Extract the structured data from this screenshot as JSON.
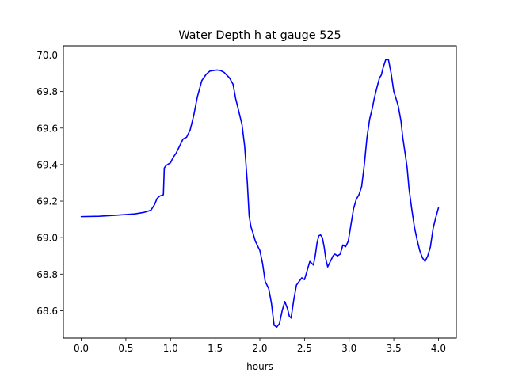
{
  "chart_data": {
    "type": "line",
    "title": "Water Depth h at gauge 525",
    "xlabel": "hours",
    "ylabel": "",
    "xlim": [
      -0.2,
      4.2
    ],
    "ylim": [
      68.45,
      70.05
    ],
    "xticks": [
      0.0,
      0.5,
      1.0,
      1.5,
      2.0,
      2.5,
      3.0,
      3.5,
      4.0
    ],
    "xtick_labels": [
      "0.0",
      "0.5",
      "1.0",
      "1.5",
      "2.0",
      "2.5",
      "3.0",
      "3.5",
      "4.0"
    ],
    "yticks": [
      68.6,
      68.8,
      69.0,
      69.2,
      69.4,
      69.6,
      69.8,
      70.0
    ],
    "ytick_labels": [
      "68.6",
      "68.8",
      "69.0",
      "69.2",
      "69.4",
      "69.6",
      "69.8",
      "70.0"
    ],
    "grid": false,
    "legend": "none",
    "series": [
      {
        "color": "#0000ff",
        "x": [
          0.0,
          0.2,
          0.4,
          0.6,
          0.7,
          0.78,
          0.82,
          0.85,
          0.88,
          0.92,
          0.93,
          0.935,
          0.95,
          1.0,
          1.03,
          1.06,
          1.1,
          1.14,
          1.18,
          1.22,
          1.26,
          1.3,
          1.35,
          1.4,
          1.44,
          1.48,
          1.52,
          1.56,
          1.6,
          1.63,
          1.66,
          1.7,
          1.73,
          1.76,
          1.8,
          1.83,
          1.86,
          1.88,
          1.9,
          1.92,
          1.95,
          2.0,
          2.03,
          2.06,
          2.1,
          2.13,
          2.16,
          2.19,
          2.22,
          2.25,
          2.28,
          2.31,
          2.33,
          2.35,
          2.38,
          2.41,
          2.44,
          2.47,
          2.5,
          2.53,
          2.56,
          2.58,
          2.6,
          2.62,
          2.64,
          2.66,
          2.68,
          2.7,
          2.72,
          2.74,
          2.76,
          2.79,
          2.82,
          2.84,
          2.87,
          2.9,
          2.93,
          2.96,
          2.99,
          3.02,
          3.05,
          3.08,
          3.11,
          3.14,
          3.17,
          3.2,
          3.23,
          3.26,
          3.28,
          3.31,
          3.34,
          3.36,
          3.38,
          3.41,
          3.44,
          3.47,
          3.5,
          3.52,
          3.55,
          3.58,
          3.6,
          3.63,
          3.65,
          3.67,
          3.7,
          3.73,
          3.76,
          3.79,
          3.82,
          3.85,
          3.88,
          3.91,
          3.94,
          3.97,
          4.0
        ],
        "y": [
          69.115,
          69.117,
          69.123,
          69.13,
          69.138,
          69.15,
          69.18,
          69.215,
          69.228,
          69.235,
          69.38,
          69.385,
          69.395,
          69.41,
          69.44,
          69.46,
          69.5,
          69.54,
          69.55,
          69.59,
          69.67,
          69.77,
          69.86,
          69.895,
          69.912,
          69.915,
          69.918,
          69.915,
          69.905,
          69.89,
          69.875,
          69.84,
          69.76,
          69.7,
          69.62,
          69.5,
          69.3,
          69.12,
          69.06,
          69.03,
          68.98,
          68.93,
          68.86,
          68.76,
          68.72,
          68.64,
          68.52,
          68.51,
          68.53,
          68.6,
          68.65,
          68.61,
          68.57,
          68.56,
          68.66,
          68.74,
          68.76,
          68.78,
          68.77,
          68.82,
          68.87,
          68.86,
          68.85,
          68.9,
          68.97,
          69.01,
          69.015,
          69.0,
          68.95,
          68.88,
          68.84,
          68.87,
          68.9,
          68.91,
          68.9,
          68.91,
          68.96,
          68.95,
          68.98,
          69.07,
          69.16,
          69.21,
          69.235,
          69.28,
          69.4,
          69.55,
          69.65,
          69.71,
          69.76,
          69.82,
          69.875,
          69.89,
          69.93,
          69.975,
          69.975,
          69.9,
          69.8,
          69.77,
          69.72,
          69.64,
          69.55,
          69.45,
          69.38,
          69.27,
          69.16,
          69.06,
          68.99,
          68.93,
          68.89,
          68.87,
          68.9,
          68.95,
          69.05,
          69.11,
          69.163
        ]
      }
    ]
  }
}
